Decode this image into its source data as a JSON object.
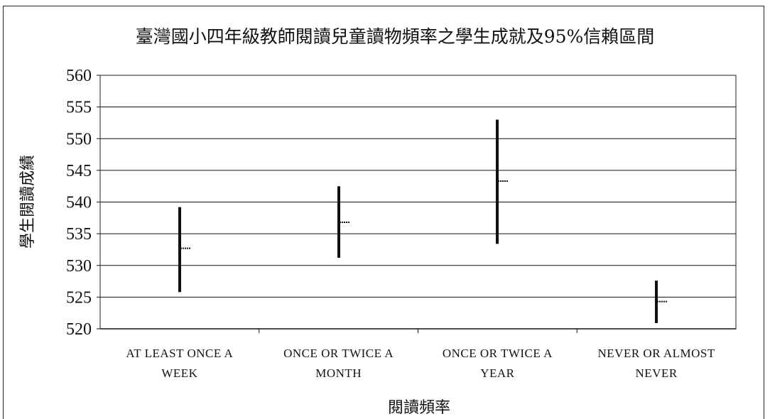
{
  "chart_data": {
    "type": "error_bar",
    "title": "臺灣國小四年級教師閱讀兒童讀物頻率之學生成就及95%信賴區間",
    "xlabel": "閱讀頻率",
    "ylabel": "學生閱讀成績",
    "ylim": [
      520,
      560
    ],
    "yticks": [
      520,
      525,
      530,
      535,
      540,
      545,
      550,
      555,
      560
    ],
    "grid": true,
    "categories": [
      [
        "AT LEAST ONCE A",
        "WEEK"
      ],
      [
        "ONCE OR TWICE A",
        "MONTH"
      ],
      [
        "ONCE OR TWICE A",
        "YEAR"
      ],
      [
        "NEVER OR ALMOST",
        "NEVER"
      ]
    ],
    "series": [
      {
        "mean": 532.7,
        "lower": 525.8,
        "upper": 539.2
      },
      {
        "mean": 536.8,
        "lower": 531.2,
        "upper": 542.5
      },
      {
        "mean": 543.3,
        "lower": 533.4,
        "upper": 553.0
      },
      {
        "mean": 524.3,
        "lower": 520.9,
        "upper": 527.6
      }
    ]
  }
}
